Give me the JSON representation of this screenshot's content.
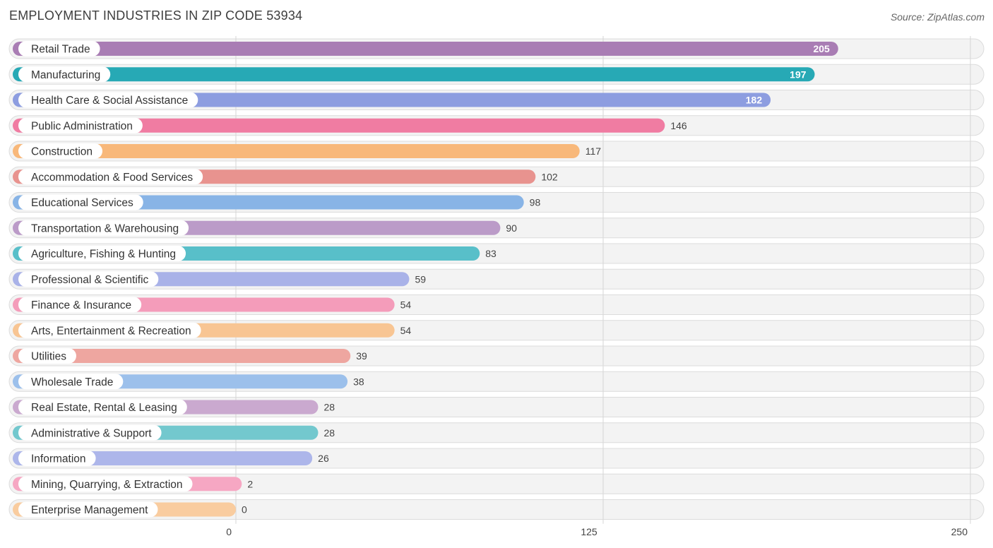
{
  "title": "EMPLOYMENT INDUSTRIES IN ZIP CODE 53934",
  "source": "Source: ZipAtlas.com",
  "chart_data": {
    "type": "bar",
    "orientation": "horizontal",
    "title": "EMPLOYMENT INDUSTRIES IN ZIP CODE 53934",
    "xlim": [
      0,
      250
    ],
    "xticks": [
      0,
      125,
      250
    ],
    "xtick_labels": [
      "0",
      "125",
      "250"
    ],
    "grid": true,
    "categories": [
      "Retail Trade",
      "Manufacturing",
      "Health Care & Social Assistance",
      "Public Administration",
      "Construction",
      "Accommodation & Food Services",
      "Educational Services",
      "Transportation & Warehousing",
      "Agriculture, Fishing & Hunting",
      "Professional & Scientific",
      "Finance & Insurance",
      "Arts, Entertainment & Recreation",
      "Utilities",
      "Wholesale Trade",
      "Real Estate, Rental & Leasing",
      "Administrative & Support",
      "Information",
      "Mining, Quarrying, & Extraction",
      "Enterprise Management"
    ],
    "values": [
      205,
      197,
      182,
      146,
      117,
      102,
      98,
      90,
      83,
      59,
      54,
      54,
      39,
      38,
      28,
      28,
      26,
      2,
      0
    ],
    "value_labels": [
      "205",
      "197",
      "182",
      "146",
      "117",
      "102",
      "98",
      "90",
      "83",
      "59",
      "54",
      "54",
      "39",
      "38",
      "28",
      "28",
      "26",
      "2",
      "0"
    ],
    "colors": [
      "#a97db4",
      "#27a9b5",
      "#8d9de0",
      "#f07ca2",
      "#f8b87a",
      "#e8938f",
      "#88b4e6",
      "#bb9bc8",
      "#58bfc9",
      "#a9b2e8",
      "#f49cba",
      "#f8c593",
      "#eea6a0",
      "#9cc0eb",
      "#caa9cf",
      "#73c8ce",
      "#adb6ea",
      "#f6a7c3",
      "#f9cc9f"
    ]
  }
}
